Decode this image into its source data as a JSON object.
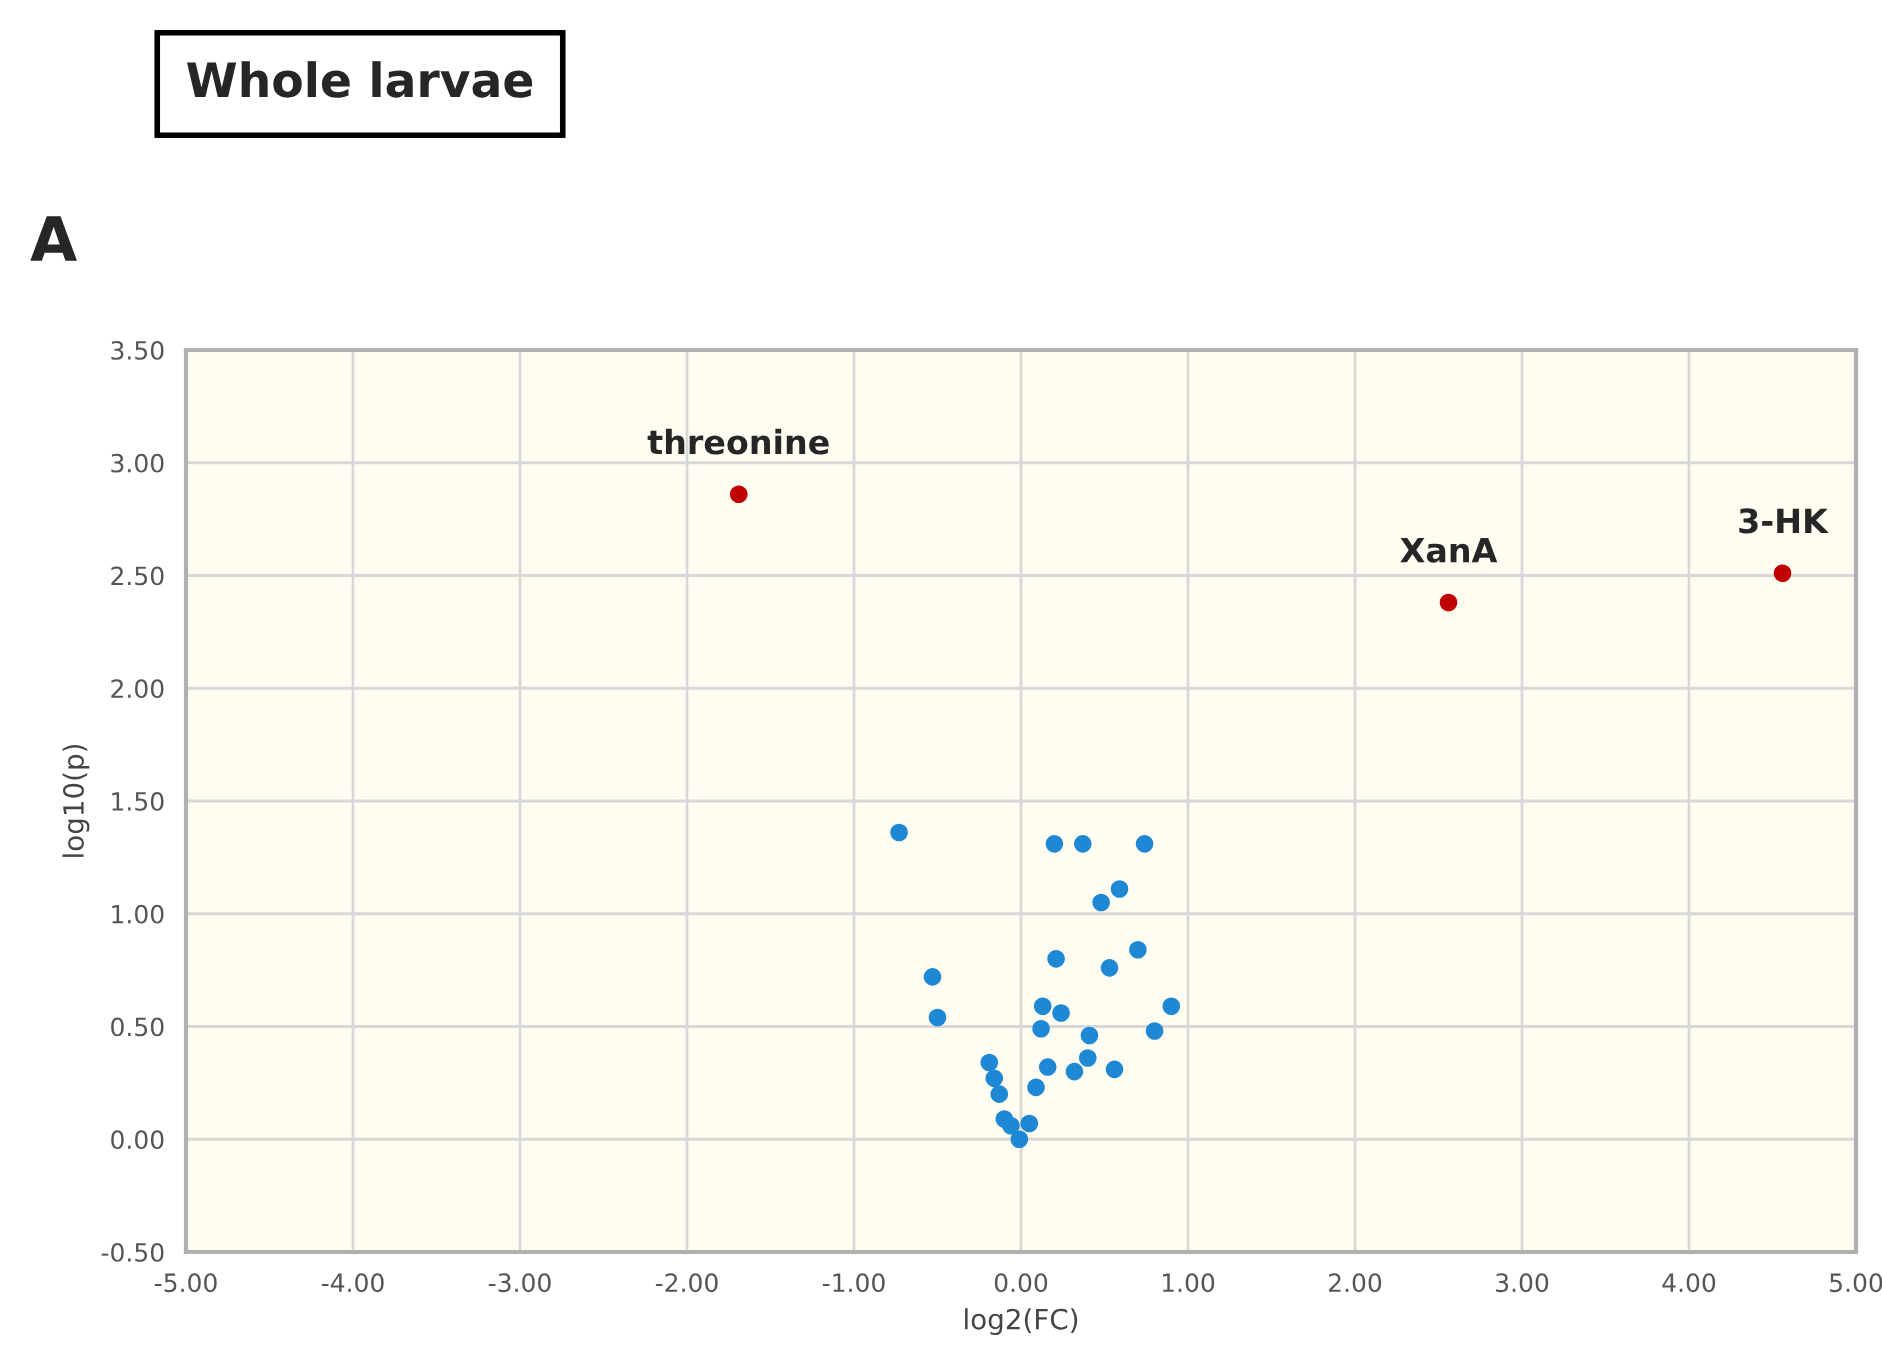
{
  "chart_data": {
    "type": "scatter",
    "title": "Whole larvae",
    "subtitle": "A",
    "xlabel": "log2(FC)",
    "ylabel": "log10(p)",
    "series": [
      {
        "color": "#1f88d4",
        "x": [
          -0.73,
          0.2,
          0.37,
          0.74,
          0.59,
          0.48,
          -0.53,
          0.21,
          0.7,
          0.53,
          -0.5,
          0.13,
          0.24,
          0.9,
          0.12,
          0.41,
          0.8,
          0.4,
          0.16,
          0.32,
          0.56,
          -0.19,
          -0.16,
          -0.13,
          0.09,
          -0.1,
          -0.06,
          0.05,
          -0.01
        ],
        "values": [
          1.36,
          1.31,
          1.31,
          1.31,
          1.11,
          1.05,
          0.72,
          0.8,
          0.84,
          0.76,
          0.54,
          0.59,
          0.56,
          0.59,
          0.49,
          0.46,
          0.48,
          0.36,
          0.32,
          0.3,
          0.31,
          0.34,
          0.27,
          0.2,
          0.23,
          0.09,
          0.06,
          0.07,
          0.0
        ]
      },
      {
        "color": "#c00000",
        "x": [
          -1.69,
          2.56,
          4.56
        ],
        "values": [
          2.86,
          2.38,
          2.51
        ]
      }
    ],
    "annotations": [
      {
        "text": "threonine",
        "x": -1.69,
        "y": 2.86
      },
      {
        "text": "XanA",
        "x": 2.56,
        "y": 2.38
      },
      {
        "text": "3-HK",
        "x": 4.56,
        "y": 2.51
      }
    ],
    "xlim": [
      -5,
      5
    ],
    "ylim": [
      -0.5,
      3.5
    ],
    "xticks": [
      {
        "value": -5,
        "label": "-5.00"
      },
      {
        "value": -4,
        "label": "-4.00"
      },
      {
        "value": -3,
        "label": "-3.00"
      },
      {
        "value": -2,
        "label": "-2.00"
      },
      {
        "value": -1,
        "label": "-1.00"
      },
      {
        "value": 0,
        "label": "0.00"
      },
      {
        "value": 1,
        "label": "1.00"
      },
      {
        "value": 2,
        "label": "2.00"
      },
      {
        "value": 3,
        "label": "3.00"
      },
      {
        "value": 4,
        "label": "4.00"
      },
      {
        "value": 5,
        "label": "5.00"
      }
    ],
    "yticks": [
      {
        "value": -0.5,
        "label": "-0.50"
      },
      {
        "value": 0,
        "label": "0.00"
      },
      {
        "value": 0.5,
        "label": "0.50"
      },
      {
        "value": 1,
        "label": "1.00"
      },
      {
        "value": 1.5,
        "label": "1.50"
      },
      {
        "value": 2,
        "label": "2.00"
      },
      {
        "value": 2.5,
        "label": "2.50"
      },
      {
        "value": 3,
        "label": "3.00"
      },
      {
        "value": 3.5,
        "label": "3.50"
      }
    ],
    "grid": true,
    "legend": false,
    "marker": "circle"
  }
}
